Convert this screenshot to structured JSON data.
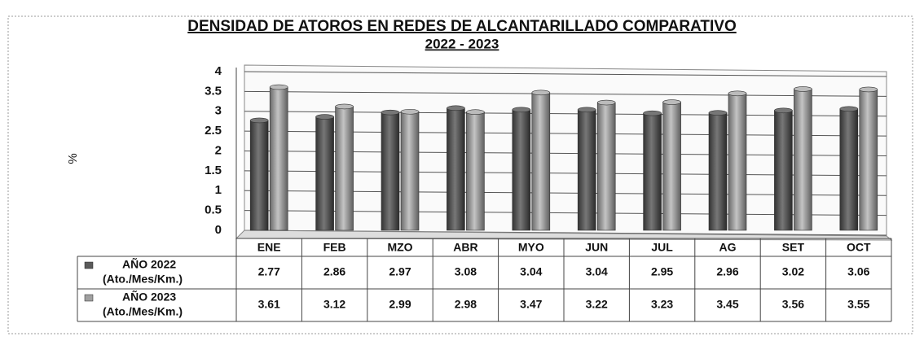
{
  "chart_data": {
    "type": "bar",
    "title": "DENSIDAD DE ATOROS EN REDES DE ALCANTARILLADO COMPARATIVO",
    "subtitle": "2022 - 2023",
    "y_label": "%",
    "categories": [
      "ENE",
      "FEB",
      "MZO",
      "ABR",
      "MYO",
      "JUN",
      "JUL",
      "AG",
      "SET",
      "OCT"
    ],
    "series": [
      {
        "name": "AÑO 2022",
        "unit": "(Ato./Mes/Km.)",
        "color": "#5a5a5a",
        "values": [
          2.77,
          2.86,
          2.97,
          3.08,
          3.04,
          3.04,
          2.95,
          2.96,
          3.02,
          3.06
        ]
      },
      {
        "name": "AÑO 2023",
        "unit": "(Ato./Mes/Km.)",
        "color": "#a0a0a0",
        "values": [
          3.61,
          3.12,
          2.99,
          2.98,
          3.47,
          3.22,
          3.23,
          3.45,
          3.56,
          3.55
        ]
      }
    ],
    "ylim": [
      0,
      4
    ],
    "yticks": [
      0,
      0.5,
      1,
      1.5,
      2,
      2.5,
      3,
      3.5,
      4
    ],
    "grid": true
  }
}
